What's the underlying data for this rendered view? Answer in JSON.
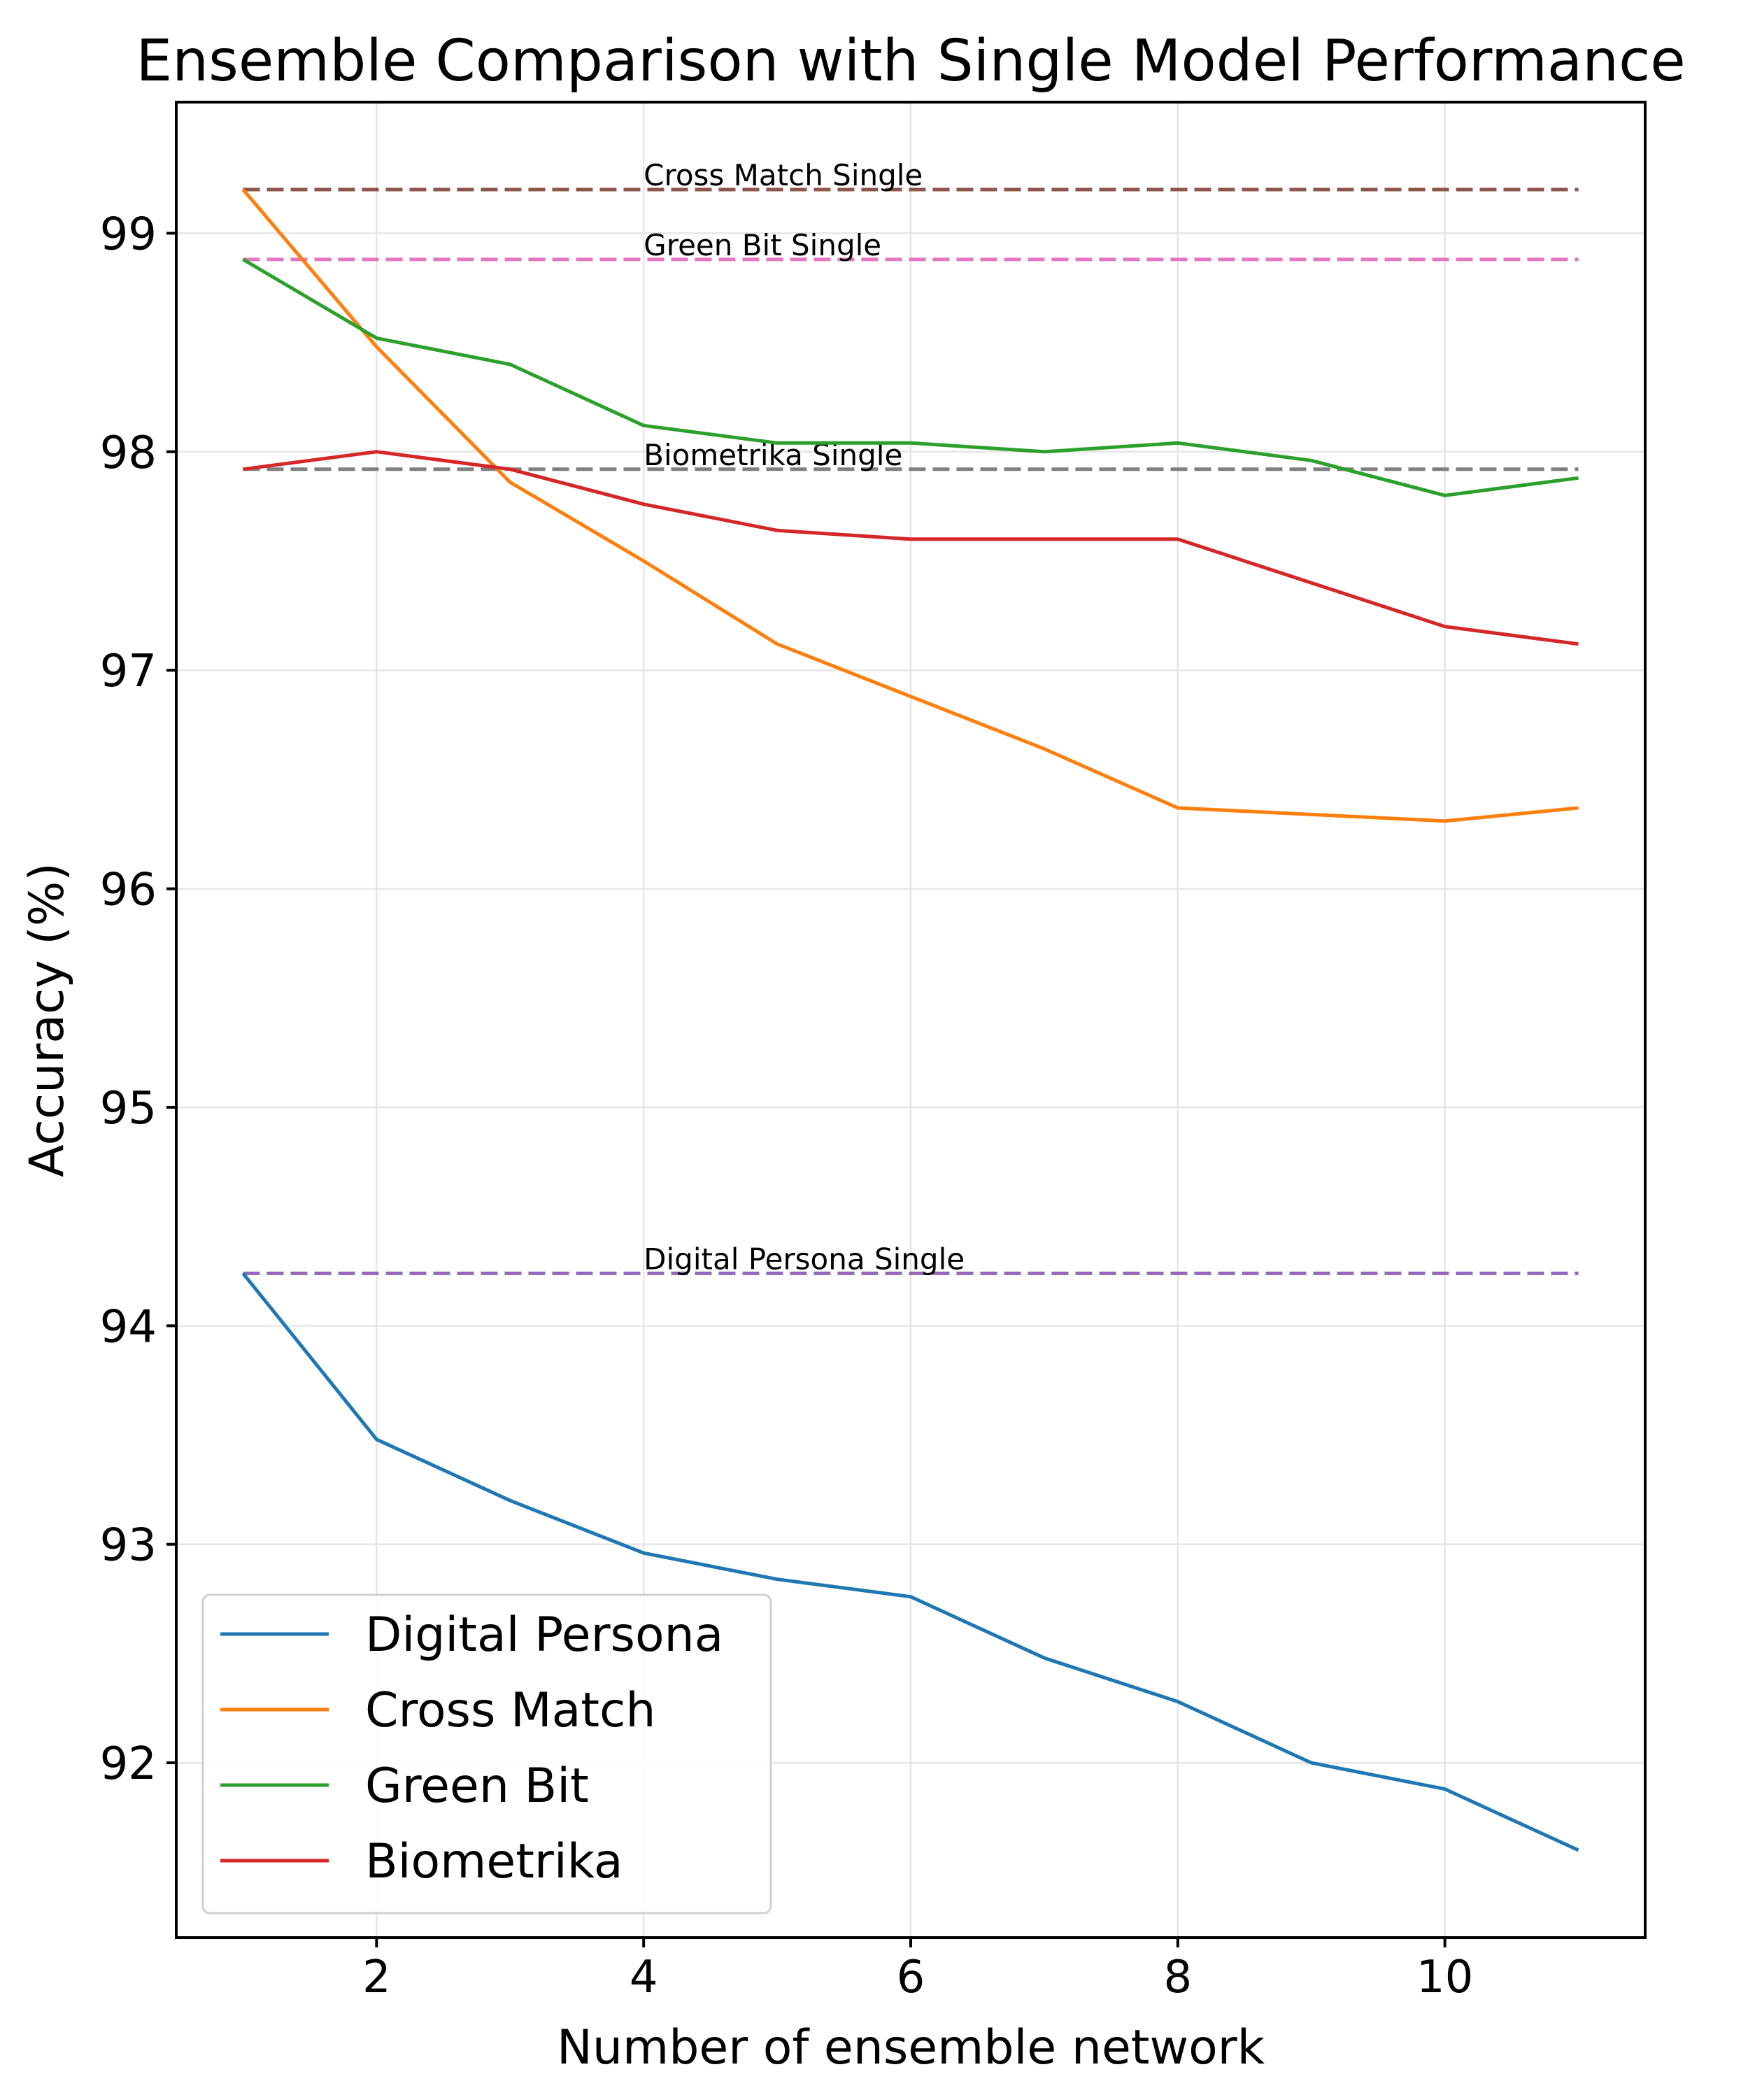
{
  "chart_data": {
    "type": "line",
    "title": "Ensemble Comparison with Single Model Performance",
    "xlabel": "Number of ensemble network",
    "ylabel": "Accuracy (%)",
    "xlim": [
      0.5,
      11.5
    ],
    "ylim": [
      91.2,
      99.6
    ],
    "xticks": [
      2,
      4,
      6,
      8,
      10
    ],
    "yticks": [
      92,
      93,
      94,
      95,
      96,
      97,
      98,
      99
    ],
    "grid": true,
    "legend_position": "lower-left",
    "x": [
      1,
      2,
      3,
      4,
      5,
      6,
      7,
      8,
      9,
      10,
      11
    ],
    "series": [
      {
        "name": "Digital Persona",
        "color": "#1f77b4",
        "values": [
          94.24,
          93.48,
          93.2,
          92.96,
          92.84,
          92.76,
          92.48,
          92.28,
          92.0,
          91.88,
          91.6
        ]
      },
      {
        "name": "Cross Match",
        "color": "#ff7f0e",
        "values": [
          99.2,
          98.48,
          97.86,
          97.5,
          97.12,
          96.88,
          96.64,
          96.37,
          96.34,
          96.31,
          96.37
        ]
      },
      {
        "name": "Green Bit",
        "color": "#2ca02c",
        "values": [
          98.88,
          98.52,
          98.4,
          98.12,
          98.04,
          98.04,
          98.0,
          98.04,
          97.96,
          97.8,
          97.88
        ]
      },
      {
        "name": "Biometrika",
        "color": "#d62728",
        "values": [
          97.92,
          98.0,
          97.92,
          97.76,
          97.64,
          97.6,
          97.6,
          97.6,
          97.4,
          97.2,
          97.12
        ]
      }
    ],
    "reference_lines": [
      {
        "label": "Cross Match Single",
        "value": 99.2,
        "color": "#8c564b",
        "label_x": 4
      },
      {
        "label": "Green Bit Single",
        "value": 98.88,
        "color": "#e377c2",
        "label_x": 4
      },
      {
        "label": "Biometrika Single",
        "value": 97.92,
        "color": "#7f7f7f",
        "label_x": 4
      },
      {
        "label": "Digital Persona Single",
        "value": 94.24,
        "color": "#9467bd",
        "label_x": 4
      }
    ],
    "reference_x_range": [
      1,
      11
    ]
  }
}
